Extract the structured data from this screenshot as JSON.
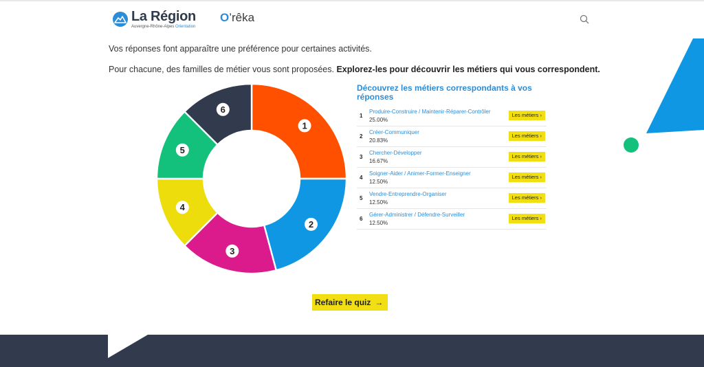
{
  "header": {
    "logo_title": "La Région",
    "logo_subtitle": "Auvergne-Rhône-Alpes",
    "logo_subtitle_accent": "Orientation",
    "brand_o": "O",
    "brand_rest": "’rêka",
    "search_icon": "search-icon"
  },
  "intro": {
    "line1": "Vos réponses font apparaître une préférence pour certaines activités.",
    "line2_plain": "Pour chacune, des familles de métier vous sont proposées. ",
    "line2_bold": "Explorez-les pour découvrir les métiers qui vous correspondent."
  },
  "chart_data": {
    "type": "pie",
    "style": "donut",
    "labels": [
      "1",
      "2",
      "3",
      "4",
      "5",
      "6"
    ],
    "values": [
      25.0,
      20.83,
      16.67,
      12.5,
      12.5,
      12.5
    ],
    "colors": [
      "#ff5000",
      "#0f97e4",
      "#db1b8c",
      "#eedd0c",
      "#14c17c",
      "#323b4e"
    ],
    "legend": "none"
  },
  "results": {
    "title": "Découvrez les métiers correspondants à vos réponses",
    "button_label": "Les métiers",
    "button_icon": "chevron-right-icon",
    "items": [
      {
        "num": "1",
        "label": "Produire-Construire / Maintenir-Réparer-Contrôler",
        "pct": "25.00%"
      },
      {
        "num": "2",
        "label": "Créer-Communiquer",
        "pct": "20.83%"
      },
      {
        "num": "3",
        "label": "Chercher-Développer",
        "pct": "16.67%"
      },
      {
        "num": "4",
        "label": "Soigner-Aider / Animer-Former-Enseigner",
        "pct": "12.50%"
      },
      {
        "num": "5",
        "label": "Vendre-Entreprendre-Organiser",
        "pct": "12.50%"
      },
      {
        "num": "6",
        "label": "Gérer-Administrer / Défendre-Surveiller",
        "pct": "12.50%"
      }
    ]
  },
  "actions": {
    "retake_label": "Refaire le quiz",
    "retake_icon": "arrow-right-icon"
  },
  "colors": {
    "accent_blue": "#2d8cd6",
    "button_yellow": "#f2df13",
    "footer_dark": "#323b4e",
    "decor_green": "#14c17c"
  }
}
